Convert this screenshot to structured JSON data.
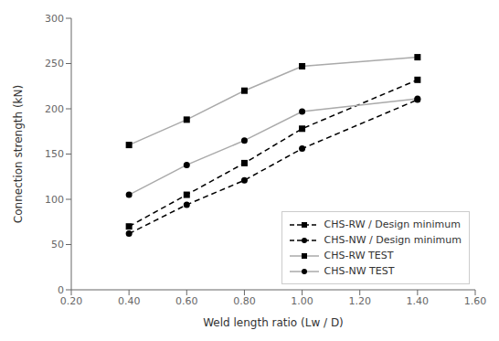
{
  "chart_data": {
    "type": "line",
    "x": [
      0.4,
      0.6,
      0.8,
      1.0,
      1.4
    ],
    "series": [
      {
        "name": "CHS-RW / Design minimum",
        "color": "#000000",
        "marker": "square",
        "line_style": "dashed",
        "values": [
          70,
          105,
          140,
          178,
          232
        ]
      },
      {
        "name": "CHS-NW / Design minimum",
        "color": "#000000",
        "marker": "circle",
        "line_style": "dashed",
        "values": [
          62,
          94,
          121,
          156,
          210
        ]
      },
      {
        "name": "CHS-RW TEST",
        "color": "#aaaaaa",
        "marker": "square",
        "line_style": "solid",
        "values": [
          160,
          188,
          220,
          247,
          257
        ]
      },
      {
        "name": "CHS-NW TEST",
        "color": "#aaaaaa",
        "marker": "circle",
        "line_style": "solid",
        "values": [
          105,
          138,
          165,
          197,
          211
        ]
      }
    ],
    "xlabel": "Weld length ratio (Lw / D)",
    "ylabel": "Connection strength (kN)",
    "xlim": [
      0.2,
      1.6
    ],
    "ylim": [
      0,
      300
    ],
    "xticks": [
      {
        "value": 0.2,
        "label": "0.20"
      },
      {
        "value": 0.4,
        "label": "0.40"
      },
      {
        "value": 0.6,
        "label": "0.60"
      },
      {
        "value": 0.8,
        "label": "0.80"
      },
      {
        "value": 1.0,
        "label": "1.00"
      },
      {
        "value": 1.2,
        "label": "1.20"
      },
      {
        "value": 1.4,
        "label": "1.40"
      },
      {
        "value": 1.6,
        "label": "1.60"
      }
    ],
    "yticks": [
      0,
      50,
      100,
      150,
      200,
      250,
      300
    ],
    "grid": false,
    "legend": "lower right"
  }
}
